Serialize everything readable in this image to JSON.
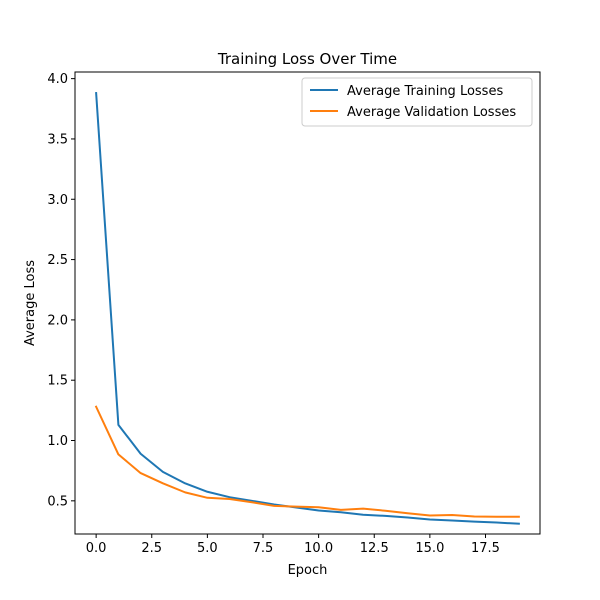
{
  "chart_data": {
    "type": "line",
    "title": "Training Loss Over Time",
    "xlabel": "Epoch",
    "ylabel": "Average Loss",
    "xlim": [
      -0.95,
      19.95
    ],
    "ylim": [
      0.225,
      4.055
    ],
    "xticks": [
      0.0,
      2.5,
      5.0,
      7.5,
      10.0,
      12.5,
      15.0,
      17.5
    ],
    "xtick_labels": [
      "0.0",
      "2.5",
      "5.0",
      "7.5",
      "10.0",
      "12.5",
      "15.0",
      "17.5"
    ],
    "yticks": [
      0.5,
      1.0,
      1.5,
      2.0,
      2.5,
      3.0,
      3.5,
      4.0
    ],
    "ytick_labels": [
      "0.5",
      "1.0",
      "1.5",
      "2.0",
      "2.5",
      "3.0",
      "3.5",
      "4.0"
    ],
    "grid": false,
    "legend_position": "upper-right",
    "x": [
      0,
      1,
      2,
      3,
      4,
      5,
      6,
      7,
      8,
      9,
      10,
      11,
      12,
      13,
      14,
      15,
      16,
      17,
      18,
      19
    ],
    "series": [
      {
        "name": "Average Training Losses",
        "color": "#1f77b4",
        "values": [
          3.88,
          1.13,
          0.89,
          0.74,
          0.645,
          0.575,
          0.53,
          0.5,
          0.47,
          0.445,
          0.42,
          0.405,
          0.385,
          0.375,
          0.362,
          0.345,
          0.337,
          0.328,
          0.32,
          0.31
        ]
      },
      {
        "name": "Average Validation Losses",
        "color": "#ff7f0e",
        "values": [
          1.28,
          0.885,
          0.73,
          0.645,
          0.57,
          0.525,
          0.515,
          0.488,
          0.458,
          0.452,
          0.447,
          0.425,
          0.435,
          0.418,
          0.397,
          0.378,
          0.382,
          0.37,
          0.368,
          0.368
        ]
      }
    ]
  }
}
